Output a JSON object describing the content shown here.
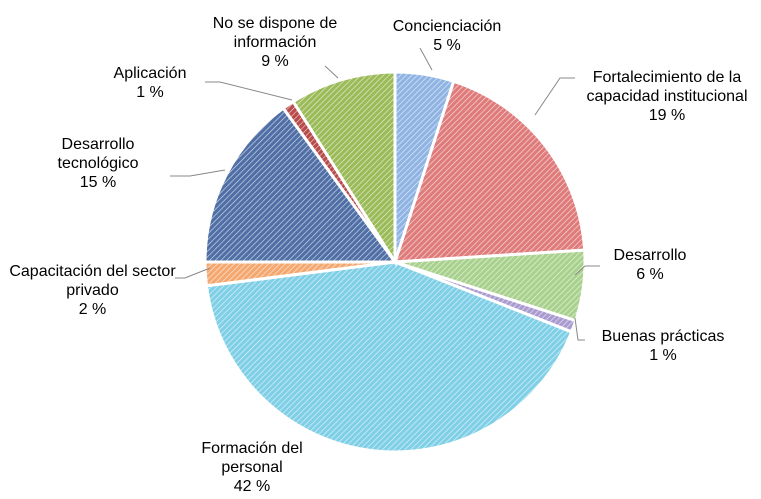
{
  "chart_data": {
    "type": "pie",
    "categories": [
      "Concienciación",
      "Fortalecimiento de la capacidad institucional",
      "Desarrollo",
      "Buenas prácticas",
      "Formación del personal",
      "Capacitación del sector privado",
      "Desarrollo tecnológico",
      "Aplicación",
      "No se dispone de información"
    ],
    "values": [
      5,
      19,
      6,
      1,
      42,
      2,
      15,
      1,
      9
    ],
    "value_labels": [
      "5 %",
      "19 %",
      "6 %",
      "1 %",
      "42 %",
      "2 %",
      "15 %",
      "1 %",
      "9 %"
    ],
    "colors": [
      "#8fb4e3",
      "#e07b7b",
      "#a9d18e",
      "#a99bd0",
      "#7fcfe6",
      "#f4a870",
      "#4f6fa6",
      "#b84a4a",
      "#9bbb59"
    ]
  }
}
